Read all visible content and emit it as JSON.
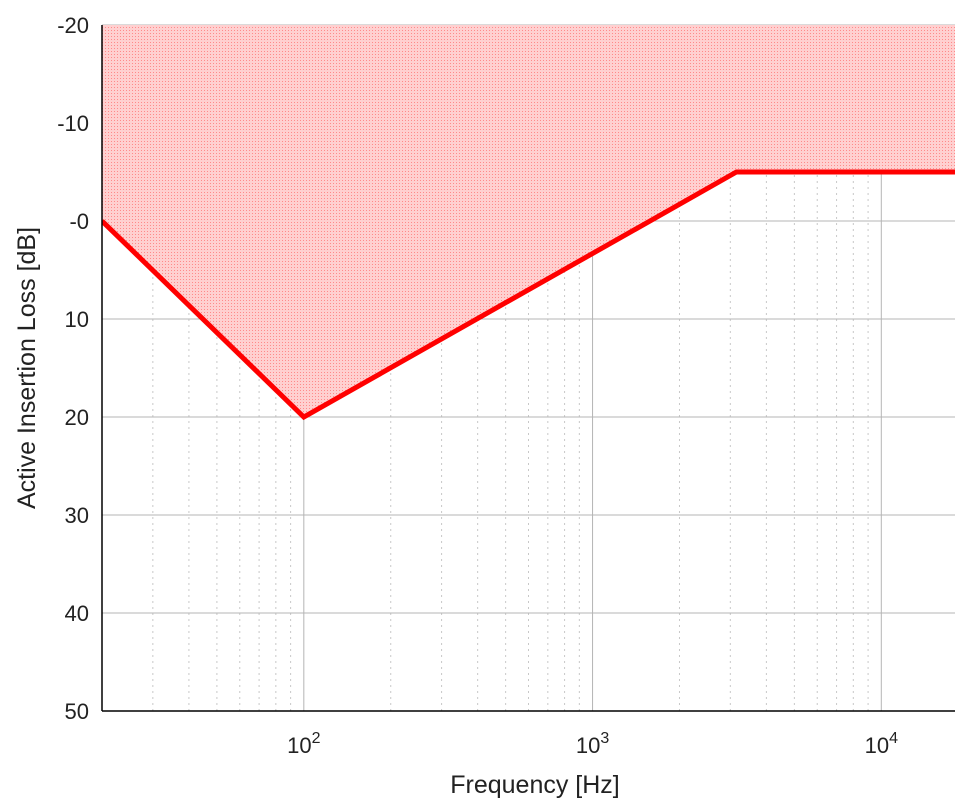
{
  "chart_data": {
    "type": "area",
    "title": "",
    "xlabel": "Frequency [Hz]",
    "ylabel": "Active Insertion Loss [dB]",
    "x_scale": "log",
    "y_inverted": true,
    "xlim": [
      20,
      18000
    ],
    "ylim": [
      -20,
      50
    ],
    "x_major_ticks": [
      {
        "value": 100,
        "base": "10",
        "exp": "2"
      },
      {
        "value": 1000,
        "base": "10",
        "exp": "3"
      },
      {
        "value": 10000,
        "base": "10",
        "exp": "4"
      }
    ],
    "y_ticks": [
      {
        "value": -20,
        "label": "-20"
      },
      {
        "value": -10,
        "label": "-10"
      },
      {
        "value": 0,
        "label": "-0"
      },
      {
        "value": 10,
        "label": "10"
      },
      {
        "value": 20,
        "label": "20"
      },
      {
        "value": 30,
        "label": "30"
      },
      {
        "value": 40,
        "label": "40"
      },
      {
        "value": 50,
        "label": "50"
      }
    ],
    "grid": true,
    "series": [
      {
        "color": "#ff0000",
        "fill_color": "#ff9a9a",
        "fill_region": "above line",
        "points": [
          {
            "x": 20,
            "y": 0
          },
          {
            "x": 100,
            "y": 20
          },
          {
            "x": 3150,
            "y": -5
          },
          {
            "x": 18000,
            "y": -5
          }
        ]
      }
    ]
  }
}
